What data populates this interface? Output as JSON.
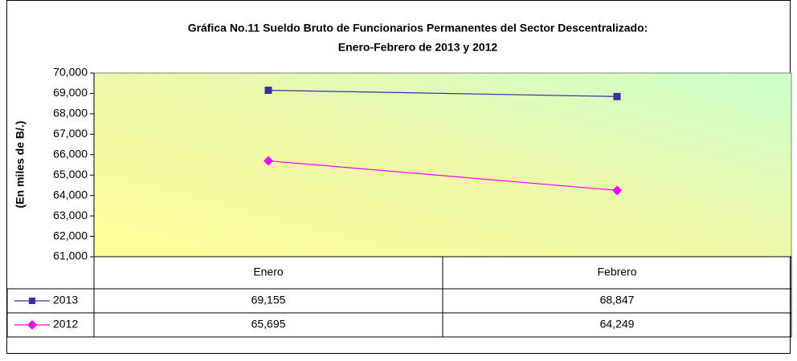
{
  "chart_data": {
    "type": "line",
    "title": [
      "Gráfica No.11 Sueldo Bruto de Funcionarios Permanentes del Sector Descentralizado:",
      "Enero-Febrero de 2013 y 2012"
    ],
    "y_label": "(En miles de B/.)",
    "categories": [
      "Enero",
      "Febrero"
    ],
    "series": [
      {
        "name": "2013",
        "color": "#333399",
        "marker": "square",
        "values": [
          69155,
          68847
        ],
        "value_labels": [
          "69,155",
          "68,847"
        ]
      },
      {
        "name": "2012",
        "color": "#ff00ff",
        "marker": "diamond",
        "values": [
          65695,
          64249
        ],
        "value_labels": [
          "65,695",
          "64,249"
        ]
      }
    ],
    "ylim": [
      61000,
      70000
    ],
    "yticks": [
      {
        "value": 61000,
        "label": "61,000"
      },
      {
        "value": 62000,
        "label": "62,000"
      },
      {
        "value": 63000,
        "label": "63,000"
      },
      {
        "value": 64000,
        "label": "64,000"
      },
      {
        "value": 65000,
        "label": "65,000"
      },
      {
        "value": 66000,
        "label": "66,000"
      },
      {
        "value": 67000,
        "label": "67,000"
      },
      {
        "value": 68000,
        "label": "68,000"
      },
      {
        "value": 69000,
        "label": "69,000"
      },
      {
        "value": 70000,
        "label": "70,000"
      }
    ]
  }
}
